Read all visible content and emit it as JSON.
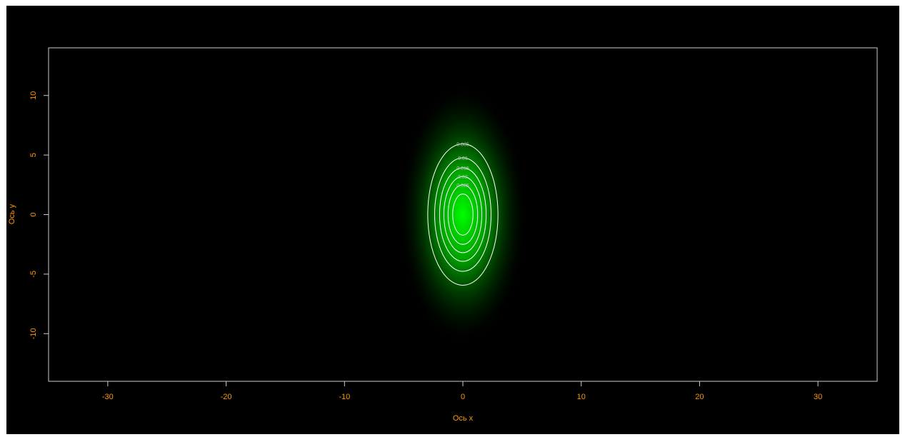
{
  "chart_data": {
    "type": "heatmap",
    "xlabel": "Ось x",
    "ylabel": "Ось y",
    "xlim": [
      -35,
      35
    ],
    "ylim": [
      -14,
      14
    ],
    "x_ticks": [
      -30,
      -20,
      -10,
      0,
      10,
      20,
      30
    ],
    "y_ticks": [
      -10,
      -5,
      0,
      5,
      10
    ],
    "x_tick_labels": [
      "-30",
      "-20",
      "-10",
      "0",
      "10",
      "20",
      "30"
    ],
    "y_tick_labels": [
      "-10",
      "-5",
      "0",
      "5",
      "10"
    ],
    "density_center": [
      0,
      0
    ],
    "density_sd": [
      1.5,
      3
    ],
    "contour_levels": [
      0.005,
      0.01,
      0.015,
      0.02,
      0.025,
      0.03
    ],
    "contour_labels": [
      "0.005",
      "0.01",
      "0.015",
      "0.02",
      "0.025"
    ],
    "colors": {
      "background": "#000000",
      "heat": "#00ff00",
      "contour": "#ffffff",
      "axis_text": "#ff9900",
      "box": "#cccccc"
    }
  }
}
